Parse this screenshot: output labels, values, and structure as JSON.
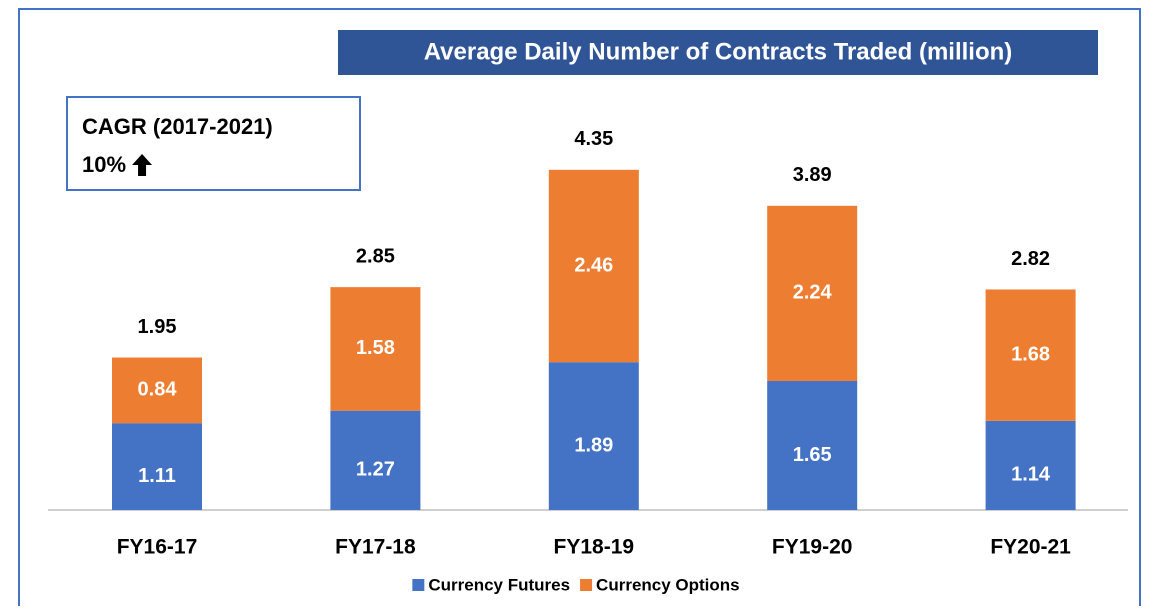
{
  "chart_data": {
    "type": "bar",
    "stacked": true,
    "title": "Average Daily Number of Contracts Traded (million)",
    "annotations": {
      "cagr_title": "CAGR (2017-2021)",
      "cagr_value": "10%"
    },
    "categories": [
      "FY16-17",
      "FY17-18",
      "FY18-19",
      "FY19-20",
      "FY20-21"
    ],
    "series": [
      {
        "name": "Currency Futures",
        "color": "#4472c4",
        "values": [
          1.11,
          1.27,
          1.89,
          1.65,
          1.14
        ]
      },
      {
        "name": "Currency Options",
        "color": "#ed7d31",
        "values": [
          0.84,
          1.58,
          2.46,
          2.24,
          1.68
        ]
      }
    ],
    "totals": [
      1.95,
      2.85,
      4.35,
      3.89,
      2.82
    ],
    "legend": "bottom"
  }
}
